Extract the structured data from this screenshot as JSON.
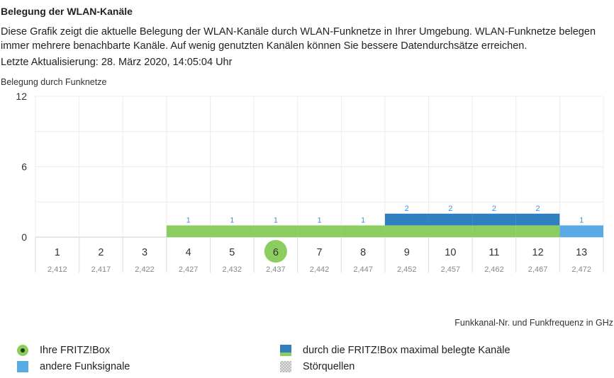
{
  "page": {
    "title": "Belegung der WLAN-Kanäle",
    "description": "Diese Grafik zeigt die aktuelle Belegung der WLAN-Kanäle durch WLAN-Funknetze in Ihrer Umgebung. WLAN-Funknetze belegen immer mehrere benachbarte Kanäle. Auf wenig genutzten Kanälen können Sie bessere Datendurchsätze erreichen.",
    "updated": "Letzte Aktualisierung: 28. März 2020, 14:05:04 Uhr"
  },
  "chart_data": {
    "type": "bar",
    "ylabel": "Belegung durch Funknetze",
    "xlabel": "Funkkanal-Nr. und Funkfrequenz in GHz",
    "ylim": [
      0,
      12
    ],
    "yticks": [
      0,
      6,
      12
    ],
    "grid": true,
    "categories": [
      "1",
      "2",
      "3",
      "4",
      "5",
      "6",
      "7",
      "8",
      "9",
      "10",
      "11",
      "12",
      "13"
    ],
    "frequencies": [
      "2,412",
      "2,417",
      "2,422",
      "2,427",
      "2,432",
      "2,437",
      "2,442",
      "2,447",
      "2,452",
      "2,457",
      "2,462",
      "2,467",
      "2,472"
    ],
    "own_channel": "6",
    "own_box_channels": [
      "4",
      "5",
      "6",
      "7",
      "8",
      "9",
      "10",
      "11",
      "12"
    ],
    "max_used_channels": [
      "9",
      "10",
      "11",
      "12"
    ],
    "values": [
      0,
      0,
      0,
      1,
      1,
      1,
      1,
      1,
      2,
      2,
      2,
      2,
      1
    ],
    "value_labels": [
      "",
      "",
      "",
      "1",
      "1",
      "1",
      "1",
      "1",
      "2",
      "2",
      "2",
      "2",
      "1"
    ],
    "colors": {
      "own_box": "#8ccd5f",
      "max_used": "#2f7fc1",
      "other": "#5aaae6",
      "value_label": "#3f8fd0"
    }
  },
  "legend": {
    "own_box": "Ihre FRITZ!Box",
    "max_used": "durch die FRITZ!Box maximal belegte Kanäle",
    "other": "andere Funksignale",
    "interference": "Störquellen"
  }
}
